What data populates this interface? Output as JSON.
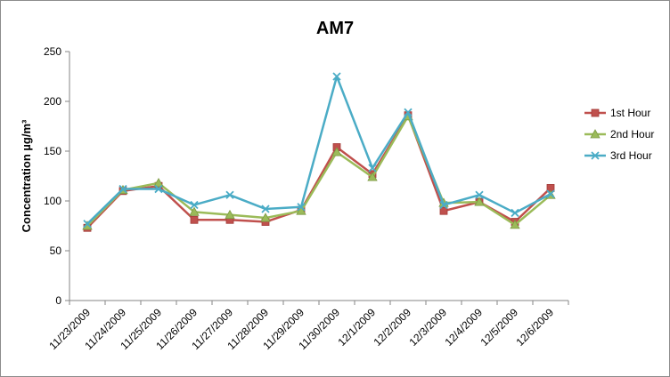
{
  "chart_data": {
    "type": "line",
    "title": "AM7",
    "ylabel": "Concentration µg/m³",
    "xlabel": "",
    "ylim": [
      0,
      250
    ],
    "yticks": [
      0,
      50,
      100,
      150,
      200,
      250
    ],
    "grid": "none",
    "legend_position": "right",
    "categories": [
      "11/23/2009",
      "11/24/2009",
      "11/25/2009",
      "11/26/2009",
      "11/27/2009",
      "11/28/2009",
      "11/29/2009",
      "11/30/2009",
      "12/1/2009",
      "12/2/2009",
      "12/3/2009",
      "12/4/2009",
      "12/5/2009",
      "12/6/2009"
    ],
    "series": [
      {
        "name": "1st Hour",
        "color": "#c0504d",
        "marker": "square",
        "values": [
          73,
          110,
          115,
          81,
          81,
          79,
          91,
          154,
          127,
          186,
          90,
          99,
          79,
          113
        ]
      },
      {
        "name": "2nd Hour",
        "color": "#9bbb59",
        "marker": "triangle",
        "values": [
          75,
          111,
          118,
          89,
          86,
          83,
          90,
          149,
          124,
          185,
          98,
          99,
          76,
          106
        ]
      },
      {
        "name": "3rd Hour",
        "color": "#4bacc6",
        "marker": "x",
        "values": [
          77,
          112,
          112,
          96,
          106,
          92,
          94,
          225,
          133,
          189,
          96,
          106,
          88,
          107
        ]
      }
    ]
  }
}
